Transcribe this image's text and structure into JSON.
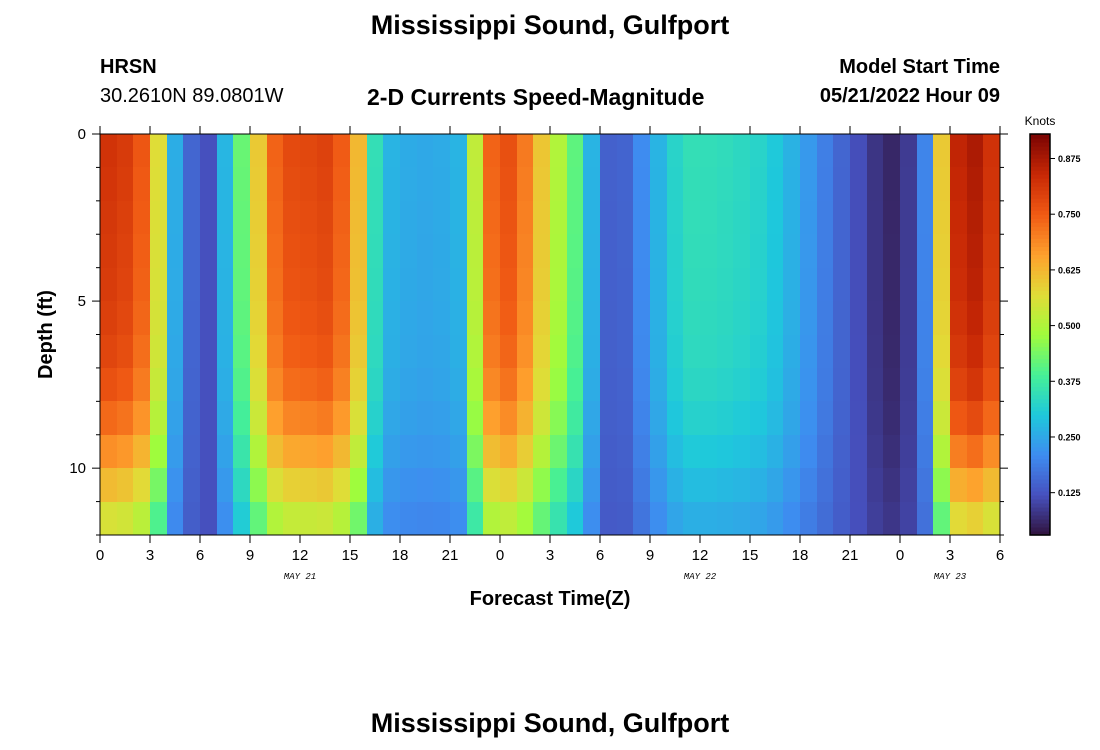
{
  "header": {
    "main_title": "Mississippi Sound, Gulfport",
    "station_id": "HRSN",
    "coords": "30.2610N  89.0801W",
    "chart_title": "2-D Currents Speed-Magnitude",
    "model_start_label": "Model Start Time",
    "model_start_value": "05/21/2022 Hour 09"
  },
  "footer": {
    "title": "Mississippi Sound, Gulfport"
  },
  "chart_data": {
    "type": "heatmap",
    "title": "2-D Currents Speed-Magnitude",
    "xlabel": "Forecast Time(Z)",
    "ylabel": "Depth (ft)",
    "x_range_hours": [
      0,
      54
    ],
    "x_tick_hours": [
      0,
      3,
      6,
      9,
      12,
      15,
      18,
      21,
      24,
      27,
      30,
      33,
      36,
      39,
      42,
      45,
      48,
      51,
      54
    ],
    "x_tick_labels": [
      "0",
      "3",
      "6",
      "9",
      "12",
      "15",
      "18",
      "21",
      "0",
      "3",
      "6",
      "9",
      "12",
      "15",
      "18",
      "21",
      "0",
      "3",
      "6"
    ],
    "x_date_labels": [
      {
        "text": "MAY 21",
        "hour": 12
      },
      {
        "text": "MAY 22",
        "hour": 36
      },
      {
        "text": "MAY 23",
        "hour": 51
      }
    ],
    "y_range_ft": [
      0,
      12
    ],
    "y_ticks": [
      0,
      5,
      10
    ],
    "y_tick_labels": [
      "0",
      "5",
      "10"
    ],
    "colorbar": {
      "label": "Knots",
      "range": [
        0.03,
        0.93
      ],
      "ticks": [
        0.125,
        0.25,
        0.375,
        0.5,
        0.625,
        0.75,
        0.875
      ],
      "tick_labels": [
        "0.125",
        "0.250",
        "0.375",
        "0.500",
        "0.625",
        "0.750",
        "0.875"
      ]
    },
    "depth_rows_ft": [
      0.5,
      1.5,
      2.5,
      3.5,
      4.5,
      5.5,
      6.5,
      7.5,
      8.5,
      9.5,
      10.5,
      11.5
    ],
    "surface_profile": {
      "hours": [
        0,
        2,
        3.2,
        4,
        5,
        6.5,
        8,
        9,
        10,
        11,
        12,
        14,
        15,
        16,
        16.5,
        17,
        18,
        20,
        21.5,
        22,
        23,
        24,
        25,
        26,
        27,
        28,
        29,
        30,
        31,
        32,
        33,
        34,
        35,
        36,
        38,
        40,
        42,
        44,
        46,
        47,
        48,
        49,
        49.5,
        50,
        51,
        52,
        53,
        54
      ],
      "values": [
        0.83,
        0.8,
        0.7,
        0.35,
        0.17,
        0.12,
        0.35,
        0.5,
        0.7,
        0.78,
        0.78,
        0.8,
        0.7,
        0.55,
        0.35,
        0.28,
        0.26,
        0.25,
        0.27,
        0.35,
        0.7,
        0.78,
        0.76,
        0.66,
        0.55,
        0.46,
        0.37,
        0.17,
        0.12,
        0.18,
        0.24,
        0.3,
        0.35,
        0.35,
        0.34,
        0.32,
        0.25,
        0.17,
        0.1,
        0.06,
        0.06,
        0.12,
        0.2,
        0.4,
        0.8,
        0.9,
        0.85,
        0.8
      ]
    },
    "depth_gradient": {
      "depth_ft": [
        0,
        5,
        7,
        8,
        9,
        10,
        11,
        12
      ],
      "factor": [
        1.0,
        0.97,
        0.94,
        0.9,
        0.84,
        0.76,
        0.66,
        0.58
      ]
    }
  }
}
